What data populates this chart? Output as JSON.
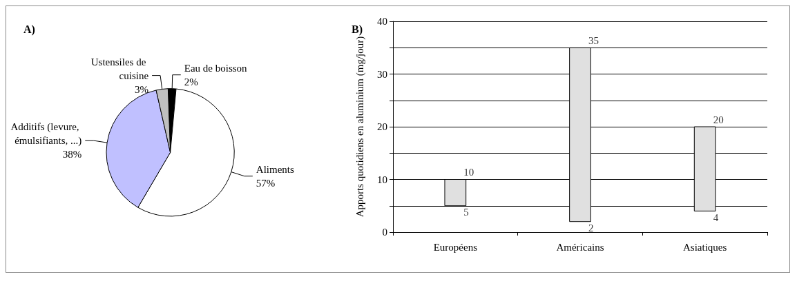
{
  "chart_data": [
    {
      "type": "pie",
      "title": "A)",
      "categories": [
        "Eau de boisson",
        "Aliments",
        "Additifs (levure, émulsifiants, ...)",
        "Ustensiles de cuisine"
      ],
      "values": [
        2,
        57,
        38,
        3
      ],
      "value_labels": [
        "2%",
        "57%",
        "38%",
        "3%"
      ],
      "colors": [
        "#000000",
        "#ffffff",
        "#c0c0ff",
        "#c0c0c0"
      ]
    },
    {
      "type": "bar",
      "title": "B)",
      "ylabel": "Apports quotidiens en aluminium (mg/jour)",
      "categories": [
        "Européens",
        "Américains",
        "Asiatiques"
      ],
      "base": [
        5,
        2,
        4
      ],
      "values": [
        5,
        33,
        16
      ],
      "color": "#e0e0e0",
      "ylim": [
        0,
        40
      ],
      "yticks": [
        0,
        {
          "value": 5,
          "label": null
        },
        10,
        {
          "value": 15,
          "label": null
        },
        20,
        {
          "value": 25,
          "label": null
        },
        30,
        {
          "value": 35,
          "label": null
        },
        40
      ],
      "grid": true,
      "annotations": [
        {
          "text": "10",
          "x": "Européens",
          "y": 10
        },
        {
          "text": "5",
          "x": "Européens",
          "y": 5
        },
        {
          "text": "35",
          "x": "Américains",
          "y": 35
        },
        {
          "text": "2",
          "x": "Américains",
          "y": 2
        },
        {
          "text": "20",
          "x": "Asiatiques",
          "y": 20
        },
        {
          "text": "4",
          "x": "Asiatiques",
          "y": 4
        }
      ]
    }
  ]
}
